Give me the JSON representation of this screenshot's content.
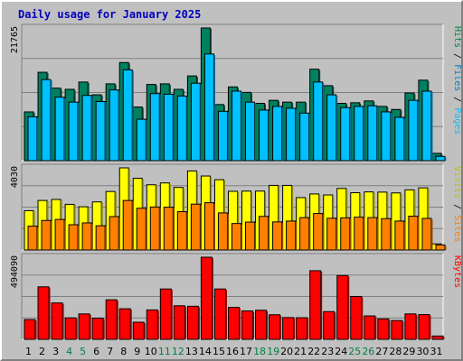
{
  "chart_data": {
    "title": "Daily usage for January 2025",
    "days": [
      "1",
      "2",
      "3",
      "4",
      "5",
      "6",
      "7",
      "8",
      "9",
      "10",
      "11",
      "12",
      "13",
      "14",
      "15",
      "16",
      "17",
      "18",
      "19",
      "20",
      "21",
      "22",
      "23",
      "24",
      "25",
      "26",
      "27",
      "28",
      "29",
      "30",
      "31"
    ],
    "weekend_days": [
      "4",
      "5",
      "11",
      "12",
      "18",
      "19",
      "25",
      "26"
    ],
    "panels": [
      {
        "type": "bar",
        "max_label": "21765",
        "ymax": 21765,
        "right_labels": [
          {
            "text": "Hits",
            "color": "#008040"
          },
          {
            "text": " / ",
            "color": "#000000"
          },
          {
            "text": "Files",
            "color": "#0080c0"
          },
          {
            "text": " / ",
            "color": "#000000"
          },
          {
            "text": "Pages",
            "color": "#00c0ff"
          }
        ],
        "series": [
          {
            "color": "#008060",
            "values": [
              8000,
              14500,
              11900,
              11700,
              12900,
              10800,
              12600,
              16100,
              8800,
              12500,
              12600,
              11700,
              13900,
              21765,
              9200,
              12100,
              11200,
              9400,
              9900,
              9600,
              9600,
              15000,
              12300,
              9400,
              9500,
              9800,
              8900,
              8400,
              11100,
              13200,
              1200
            ]
          },
          {
            "color": "#00c0ff",
            "values": [
              7200,
              13300,
              10400,
              9600,
              10700,
              9700,
              11600,
              14900,
              6800,
              11000,
              10900,
              10600,
              12700,
              17500,
              8100,
              11400,
              9600,
              8300,
              8900,
              8600,
              7800,
              12900,
              10800,
              8700,
              8900,
              9000,
              8000,
              7100,
              9900,
              11400,
              700
            ]
          }
        ]
      },
      {
        "type": "bar",
        "max_label": "4030",
        "ymax": 4030,
        "right_labels": [
          {
            "text": "Visits",
            "color": "#c0c000"
          },
          {
            "text": " / ",
            "color": "#000000"
          },
          {
            "text": "Sites",
            "color": "#ff8000"
          }
        ],
        "series": [
          {
            "color": "#ffff00",
            "values": [
              1930,
              2430,
              2480,
              2240,
              2120,
              2360,
              2870,
              4030,
              3520,
              3200,
              3290,
              3070,
              3880,
              3630,
              3450,
              2880,
              2890,
              2890,
              3170,
              3170,
              2570,
              2750,
              2700,
              3020,
              2810,
              2850,
              2840,
              2800,
              2950,
              3050,
              300
            ]
          },
          {
            "color": "#ff8000",
            "values": [
              1170,
              1450,
              1500,
              1240,
              1330,
              1190,
              1640,
              2430,
              2050,
              2110,
              2100,
              1880,
              2250,
              2320,
              1820,
              1300,
              1370,
              1650,
              1380,
              1420,
              1590,
              1790,
              1560,
              1580,
              1610,
              1590,
              1540,
              1420,
              1660,
              1550,
              250
            ]
          }
        ]
      },
      {
        "type": "bar",
        "max_label": "494090",
        "ymax": 494090,
        "right_labels": [
          {
            "text": "KBytes",
            "color": "#ff0000"
          }
        ],
        "series": [
          {
            "color": "#ff0000",
            "values": [
              119000,
              316000,
              219000,
              129000,
              153000,
              127000,
              238000,
              184000,
              103000,
              177000,
              303000,
              202000,
              199000,
              494090,
              303000,
              192000,
              171000,
              175000,
              148000,
              131000,
              130000,
              413000,
              167000,
              384000,
              258000,
              141000,
              123000,
              113000,
              153000,
              149000,
              20000
            ]
          }
        ]
      }
    ]
  }
}
